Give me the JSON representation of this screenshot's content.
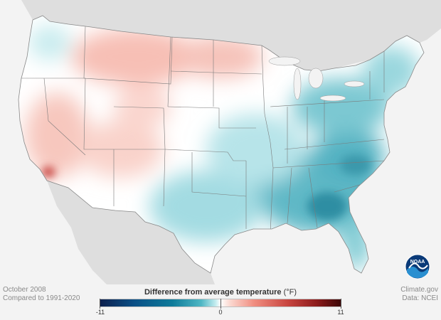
{
  "map": {
    "colors": {
      "background": "#f3f3f3",
      "land": "#dcdcdc",
      "state_border": "#777777",
      "cold_strong": "#1d7f96",
      "cold_mid": "#74c7d1",
      "cold_light": "#d3f0f2",
      "neutral": "#ffffff",
      "warm_light": "#fbe0da",
      "warm_mid": "#f3a79c",
      "warm_strong": "#c8453f"
    }
  },
  "info": {
    "date": "October 2008",
    "baseline": "Compared to 1991-2020",
    "source_site": "Climate.gov",
    "source_data": "Data: NCEI"
  },
  "legend": {
    "title": "Difference from average temperature",
    "unit": "(°F)",
    "min_label": "-11",
    "mid_label": "0",
    "max_label": "11",
    "min_value": -11,
    "max_value": 11,
    "colors": [
      "#0c1f4d",
      "#0a4f86",
      "#0e7b9a",
      "#4fb7c4",
      "#ffffff",
      "#f08d80",
      "#c8453f",
      "#8c1b1b",
      "#3e0808"
    ]
  },
  "logo": {
    "text": "NOAA",
    "icon": "noaa-logo-icon"
  }
}
